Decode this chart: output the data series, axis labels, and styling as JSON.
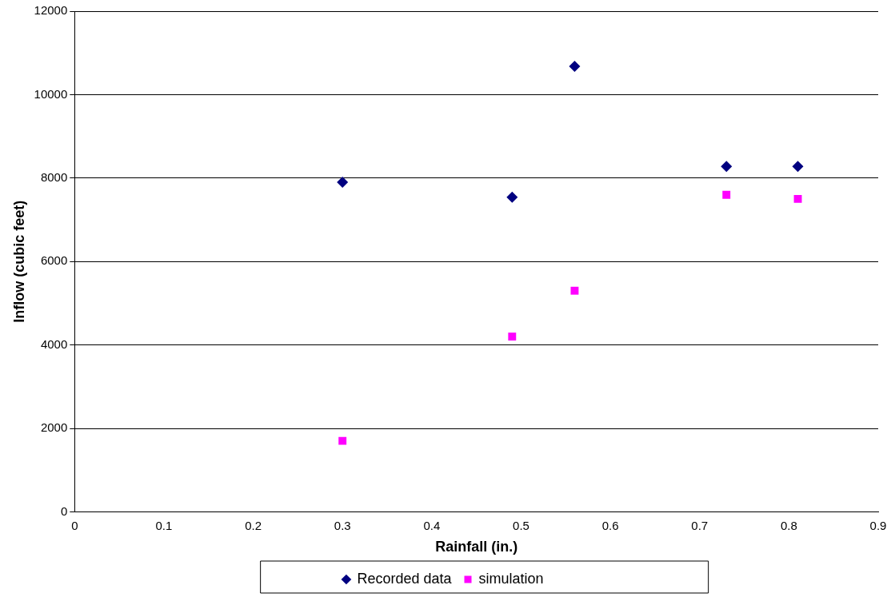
{
  "chart_data": {
    "type": "scatter",
    "xlabel": "Rainfall (in.)",
    "ylabel": "Inflow (cubic feet)",
    "x": [
      0.3,
      0.49,
      0.56,
      0.73,
      0.81
    ],
    "series": [
      {
        "name": "Recorded data",
        "color": "#000080",
        "marker": "diamond",
        "values": [
          7900,
          7540,
          10680,
          8280,
          8280
        ]
      },
      {
        "name": "simulation",
        "color": "#ff00ff",
        "marker": "square",
        "values": [
          1700,
          4200,
          5300,
          7600,
          7500
        ]
      }
    ],
    "xlim": [
      0,
      0.9
    ],
    "xticks": [
      0,
      0.1,
      0.2,
      0.3,
      0.4,
      0.5,
      0.6,
      0.7,
      0.8,
      0.9
    ],
    "ylim": [
      0,
      12000
    ],
    "yticks": [
      0,
      2000,
      4000,
      6000,
      8000,
      10000,
      12000
    ],
    "grid": "y",
    "legend": "bottom"
  }
}
